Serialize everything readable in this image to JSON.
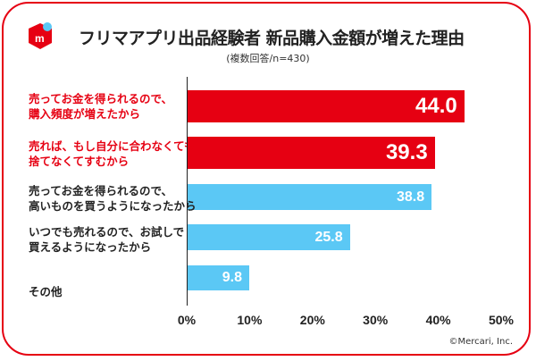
{
  "chart_data": {
    "type": "bar",
    "orientation": "horizontal",
    "title": "フリマアプリ出品経験者 新品購入金額が増えた理由",
    "subtitle": "(複数回答/n=430)",
    "categories": [
      [
        "売ってお金を得られるので、",
        "購入頻度が増えたから"
      ],
      [
        "売れば、もし自分に合わなくても",
        "捨てなくてすむから"
      ],
      [
        "売ってお金を得られるので、",
        "高いものを買うようになったから"
      ],
      [
        "いつでも売れるので、お試しで",
        "買えるようになったから"
      ],
      [
        "その他"
      ]
    ],
    "values": [
      44.0,
      39.3,
      38.8,
      25.8,
      9.8
    ],
    "value_labels": [
      "44.0",
      "39.3",
      "38.8",
      "25.8",
      "9.8"
    ],
    "highlight": [
      true,
      true,
      false,
      false,
      false
    ],
    "colors": {
      "highlight": "#e60012",
      "normal": "#5bc8f5"
    },
    "xlim": [
      0,
      50
    ],
    "xticks": [
      "0%",
      "10%",
      "20%",
      "30%",
      "40%",
      "50%"
    ],
    "grid": false
  },
  "copyright": "©Mercari, Inc."
}
